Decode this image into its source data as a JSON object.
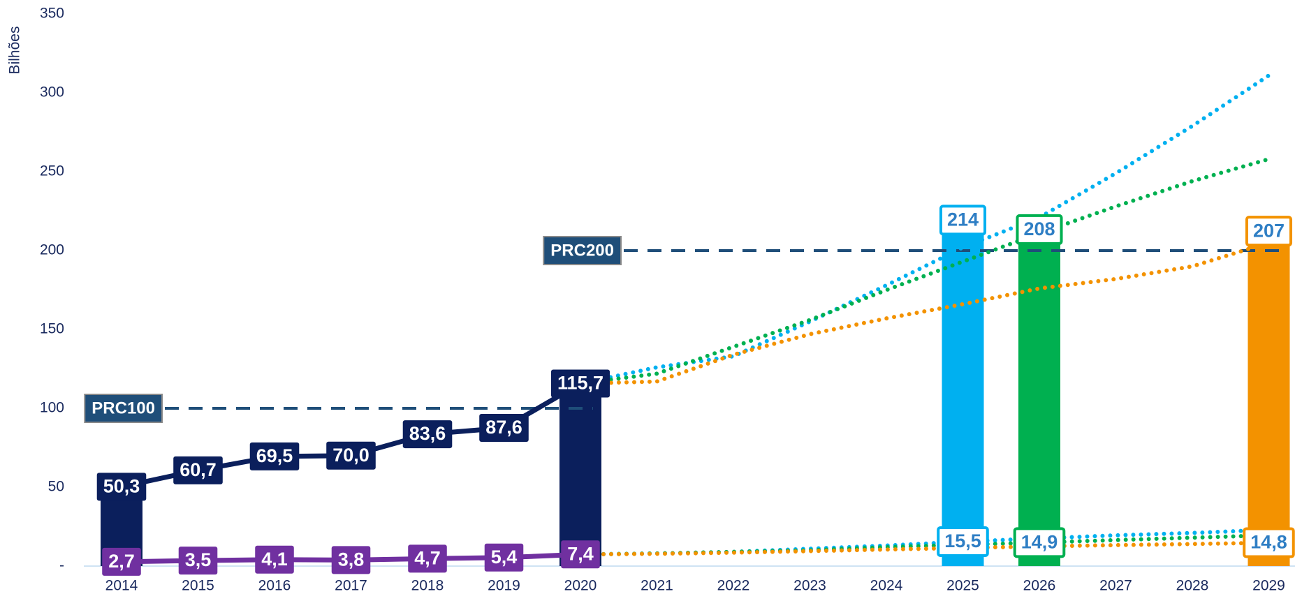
{
  "chart_data": {
    "type": "line",
    "y_label": "Bilhões",
    "categories": [
      "2014",
      "2015",
      "2016",
      "2017",
      "2018",
      "2019",
      "2020",
      "2021",
      "2022",
      "2023",
      "2024",
      "2025",
      "2026",
      "2027",
      "2028",
      "2029"
    ],
    "ylim": [
      0,
      350
    ],
    "yticks": [
      {
        "value": 0,
        "label": "-"
      },
      50,
      100,
      150,
      200,
      250,
      300,
      350
    ],
    "reference_lines": [
      {
        "label": "PRC100",
        "value": 100,
        "x_range": [
          "2014",
          "2020"
        ]
      },
      {
        "label": "PRC200",
        "value": 200,
        "x_range": [
          "2020",
          "2029"
        ]
      }
    ],
    "series": [
      {
        "type": "bar",
        "color": "#0b1f5c",
        "values": [
          50.3,
          null,
          null,
          null,
          null,
          null,
          115.7,
          null,
          null,
          null,
          null,
          null,
          null,
          null,
          null,
          null
        ]
      },
      {
        "type": "bar",
        "color": "#00b0f0",
        "label_style": "outline",
        "values": [
          null,
          null,
          null,
          null,
          null,
          null,
          null,
          null,
          null,
          null,
          null,
          214,
          null,
          null,
          null,
          null
        ]
      },
      {
        "type": "bar",
        "color": "#00b050",
        "label_style": "outline",
        "values": [
          null,
          null,
          null,
          null,
          null,
          null,
          null,
          null,
          null,
          null,
          null,
          null,
          208,
          null,
          null,
          null
        ]
      },
      {
        "type": "bar",
        "color": "#f39200",
        "label_style": "outline",
        "values": [
          null,
          null,
          null,
          null,
          null,
          null,
          null,
          null,
          null,
          null,
          null,
          null,
          null,
          null,
          null,
          207
        ]
      },
      {
        "type": "line",
        "style": "dotted",
        "color": "#00b0f0",
        "values": [
          null,
          null,
          null,
          null,
          null,
          null,
          115.7,
          126,
          133,
          155,
          178,
          202,
          221,
          249,
          279,
          311
        ]
      },
      {
        "type": "line",
        "style": "dotted",
        "color": "#00b050",
        "values": [
          null,
          null,
          null,
          null,
          null,
          null,
          115.7,
          122,
          139,
          156,
          175,
          193,
          211,
          228,
          244,
          258
        ]
      },
      {
        "type": "line",
        "style": "dotted",
        "color": "#f39200",
        "values": [
          null,
          null,
          null,
          null,
          null,
          null,
          115.7,
          117,
          134,
          147,
          157,
          166,
          176,
          182,
          190,
          205
        ]
      },
      {
        "type": "line",
        "style": "dotted",
        "color": "#00b0f0",
        "label_style": "outline",
        "label_color": "#00b0f0",
        "values": [
          null,
          null,
          null,
          null,
          null,
          null,
          7.4,
          8,
          9,
          11,
          13,
          15.5,
          17.5,
          19.5,
          21,
          23
        ],
        "value_labels": [
          null,
          null,
          null,
          null,
          null,
          null,
          null,
          null,
          null,
          null,
          null,
          "15,5",
          null,
          null,
          null,
          null
        ]
      },
      {
        "type": "line",
        "style": "dotted",
        "color": "#00b050",
        "label_style": "outline",
        "label_color": "#00b050",
        "values": [
          null,
          null,
          null,
          null,
          null,
          null,
          7.4,
          8,
          9,
          10,
          12,
          13.5,
          14.9,
          16.5,
          18,
          19.5
        ],
        "value_labels": [
          null,
          null,
          null,
          null,
          null,
          null,
          null,
          null,
          null,
          null,
          null,
          null,
          "14,9",
          null,
          null,
          null
        ]
      },
      {
        "type": "line",
        "style": "dotted",
        "color": "#f39200",
        "label_style": "outline",
        "label_color": "#f39200",
        "values": [
          null,
          null,
          null,
          null,
          null,
          null,
          7.4,
          7.8,
          8.5,
          9.5,
          10.5,
          11.5,
          12.5,
          13.3,
          14,
          14.8
        ],
        "value_labels": [
          null,
          null,
          null,
          null,
          null,
          null,
          null,
          null,
          null,
          null,
          null,
          null,
          null,
          null,
          null,
          "14,8"
        ]
      },
      {
        "type": "line",
        "style": "solid",
        "color": "#0b1f5c",
        "label_style": "filled",
        "values": [
          50.3,
          60.7,
          69.5,
          70.0,
          83.6,
          87.6,
          115.7,
          null,
          null,
          null,
          null,
          null,
          null,
          null,
          null,
          null
        ],
        "value_labels": [
          "50,3",
          "60,7",
          "69,5",
          "70,0",
          "83,6",
          "87,6",
          "115,7",
          null,
          null,
          null,
          null,
          null,
          null,
          null,
          null,
          null
        ]
      },
      {
        "type": "line",
        "style": "solid",
        "color": "#7030a0",
        "label_style": "filled",
        "values": [
          2.7,
          3.5,
          4.1,
          3.8,
          4.7,
          5.4,
          7.4,
          null,
          null,
          null,
          null,
          null,
          null,
          null,
          null,
          null
        ],
        "value_labels": [
          "2,7",
          "3,5",
          "4,1",
          "3,8",
          "4,7",
          "5,4",
          "7,4",
          null,
          null,
          null,
          null,
          null,
          null,
          null,
          null,
          null
        ]
      }
    ]
  }
}
